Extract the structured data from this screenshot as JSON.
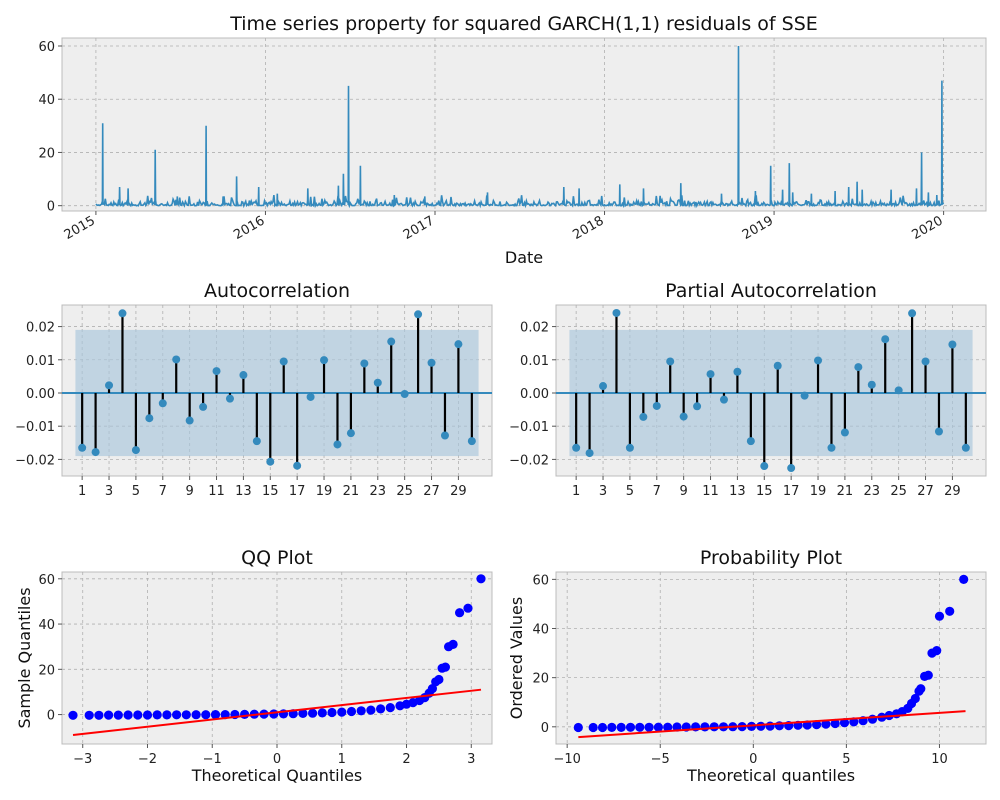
{
  "figure": {
    "main_title": "Time series property for squared GARCH(1,1) residuals of SSE",
    "acf_title": "Autocorrelation",
    "pacf_title": "Partial Autocorrelation",
    "qq_title": "QQ Plot",
    "prob_title": "Probability Plot",
    "line_color": "#348abd",
    "marker_color": "#0000ff",
    "fit_color": "#ff0000",
    "band_color": "#a9c6db",
    "axes_bg": "#eeeeee"
  },
  "chart_data": [
    {
      "type": "line",
      "title": "Time series property for squared GARCH(1,1) residuals of SSE",
      "xlabel": "Date",
      "ylabel": "",
      "xlim": [
        2014.8,
        2020.25
      ],
      "ylim": [
        -2,
        63
      ],
      "x_ticks": [
        2015,
        2016,
        2017,
        2018,
        2019,
        2020
      ],
      "x_tick_labels": [
        "2015",
        "2016",
        "2017",
        "2018",
        "2019",
        "2020"
      ],
      "y_ticks": [
        0,
        20,
        40,
        60
      ],
      "y_tick_labels": [
        "0",
        "20",
        "40",
        "60"
      ],
      "grid": true,
      "spikes": [
        {
          "date": 2015.04,
          "value": 31
        },
        {
          "date": 2015.14,
          "value": 7
        },
        {
          "date": 2015.19,
          "value": 6.5
        },
        {
          "date": 2015.35,
          "value": 21
        },
        {
          "date": 2015.48,
          "value": 3.5
        },
        {
          "date": 2015.65,
          "value": 30
        },
        {
          "date": 2015.75,
          "value": 3.5
        },
        {
          "date": 2015.83,
          "value": 11
        },
        {
          "date": 2015.96,
          "value": 7
        },
        {
          "date": 2016.07,
          "value": 4.5
        },
        {
          "date": 2016.25,
          "value": 6.5
        },
        {
          "date": 2016.43,
          "value": 7.5
        },
        {
          "date": 2016.46,
          "value": 12
        },
        {
          "date": 2016.49,
          "value": 45
        },
        {
          "date": 2016.56,
          "value": 15
        },
        {
          "date": 2016.76,
          "value": 4
        },
        {
          "date": 2016.94,
          "value": 3.5
        },
        {
          "date": 2017.31,
          "value": 5
        },
        {
          "date": 2017.76,
          "value": 7
        },
        {
          "date": 2017.85,
          "value": 6.5
        },
        {
          "date": 2018.09,
          "value": 8
        },
        {
          "date": 2018.23,
          "value": 6.5
        },
        {
          "date": 2018.45,
          "value": 8.5
        },
        {
          "date": 2018.69,
          "value": 4.5
        },
        {
          "date": 2018.79,
          "value": 60
        },
        {
          "date": 2018.89,
          "value": 5.5
        },
        {
          "date": 2018.98,
          "value": 15
        },
        {
          "date": 2019.05,
          "value": 6
        },
        {
          "date": 2019.09,
          "value": 16
        },
        {
          "date": 2019.11,
          "value": 5
        },
        {
          "date": 2019.22,
          "value": 4.5
        },
        {
          "date": 2019.36,
          "value": 5.5
        },
        {
          "date": 2019.44,
          "value": 7
        },
        {
          "date": 2019.49,
          "value": 9
        },
        {
          "date": 2019.52,
          "value": 6
        },
        {
          "date": 2019.69,
          "value": 6
        },
        {
          "date": 2019.84,
          "value": 6.5
        },
        {
          "date": 2019.87,
          "value": 20
        },
        {
          "date": 2019.91,
          "value": 5
        },
        {
          "date": 2019.96,
          "value": 4
        },
        {
          "date": 2019.99,
          "value": 47
        }
      ]
    },
    {
      "type": "bar",
      "title": "Autocorrelation",
      "xlabel": "",
      "ylabel": "",
      "xlim": [
        -0.5,
        31.5
      ],
      "ylim": [
        -0.025,
        0.0265
      ],
      "x_ticks": [
        1,
        3,
        5,
        7,
        9,
        11,
        13,
        15,
        17,
        19,
        21,
        23,
        25,
        27,
        29
      ],
      "x_tick_labels": [
        "1",
        "3",
        "5",
        "7",
        "9",
        "11",
        "13",
        "15",
        "17",
        "19",
        "21",
        "23",
        "25",
        "27",
        "29"
      ],
      "y_ticks": [
        -0.02,
        -0.01,
        0.0,
        0.01,
        0.02
      ],
      "y_tick_labels": [
        "−0.02",
        "−0.01",
        "0.00",
        "0.01",
        "0.02"
      ],
      "confidence_band": [
        -0.019,
        0.019
      ],
      "lags": [
        1,
        2,
        3,
        4,
        5,
        6,
        7,
        8,
        9,
        10,
        11,
        12,
        13,
        14,
        15,
        16,
        17,
        18,
        19,
        20,
        21,
        22,
        23,
        24,
        25,
        26,
        27,
        28,
        29,
        30
      ],
      "values": [
        -0.0165,
        -0.0178,
        0.0023,
        0.024,
        -0.0172,
        -0.0076,
        -0.0031,
        0.0101,
        -0.0083,
        -0.0042,
        0.0066,
        -0.0017,
        0.0054,
        -0.0145,
        -0.0207,
        0.0095,
        -0.0219,
        -0.0012,
        0.0099,
        -0.0155,
        -0.0121,
        0.0089,
        0.0031,
        0.0155,
        -0.0003,
        0.0237,
        0.0091,
        -0.0128,
        0.0147,
        -0.0145
      ],
      "grid": true
    },
    {
      "type": "bar",
      "title": "Partial Autocorrelation",
      "xlabel": "",
      "ylabel": "",
      "xlim": [
        -0.5,
        31.5
      ],
      "ylim": [
        -0.025,
        0.0265
      ],
      "x_ticks": [
        1,
        3,
        5,
        7,
        9,
        11,
        13,
        15,
        17,
        19,
        21,
        23,
        25,
        27,
        29
      ],
      "x_tick_labels": [
        "1",
        "3",
        "5",
        "7",
        "9",
        "11",
        "13",
        "15",
        "17",
        "19",
        "21",
        "23",
        "25",
        "27",
        "29"
      ],
      "y_ticks": [
        -0.02,
        -0.01,
        0.0,
        0.01,
        0.02
      ],
      "y_tick_labels": [
        "−0.02",
        "−0.01",
        "0.00",
        "0.01",
        "0.02"
      ],
      "confidence_band": [
        -0.019,
        0.019
      ],
      "lags": [
        1,
        2,
        3,
        4,
        5,
        6,
        7,
        8,
        9,
        10,
        11,
        12,
        13,
        14,
        15,
        16,
        17,
        18,
        19,
        20,
        21,
        22,
        23,
        24,
        25,
        26,
        27,
        28,
        29,
        30
      ],
      "values": [
        -0.0165,
        -0.0181,
        0.0021,
        0.0241,
        -0.0165,
        -0.0072,
        -0.0039,
        0.0095,
        -0.0071,
        -0.004,
        0.0057,
        -0.002,
        0.0064,
        -0.0145,
        -0.022,
        0.0082,
        -0.0226,
        -0.0008,
        0.0098,
        -0.0165,
        -0.0119,
        0.0078,
        0.0025,
        0.0162,
        0.0008,
        0.024,
        0.0095,
        -0.0116,
        0.0146,
        -0.0165
      ],
      "grid": true
    },
    {
      "type": "scatter",
      "title": "QQ Plot",
      "xlabel": "Theoretical Quantiles",
      "ylabel": "Sample Quantiles",
      "xlim": [
        -3.32,
        3.32
      ],
      "ylim": [
        -13,
        63
      ],
      "x_ticks": [
        -3,
        -2,
        -1,
        0,
        1,
        2,
        3
      ],
      "x_tick_labels": [
        "−3",
        "−2",
        "−1",
        "0",
        "1",
        "2",
        "3"
      ],
      "y_ticks": [
        0,
        20,
        40,
        60
      ],
      "y_tick_labels": [
        "0",
        "20",
        "40",
        "60"
      ],
      "fit_line": {
        "x": [
          -3.15,
          3.15
        ],
        "y": [
          -9,
          11
        ]
      },
      "points": [
        [
          -3.15,
          -0.3
        ],
        [
          -2.9,
          -0.3
        ],
        [
          -2.75,
          -0.3
        ],
        [
          -2.6,
          -0.25
        ],
        [
          -2.45,
          -0.25
        ],
        [
          -2.3,
          -0.2
        ],
        [
          -2.15,
          -0.2
        ],
        [
          -2.0,
          -0.2
        ],
        [
          -1.85,
          -0.15
        ],
        [
          -1.7,
          -0.15
        ],
        [
          -1.55,
          -0.1
        ],
        [
          -1.4,
          -0.1
        ],
        [
          -1.25,
          -0.05
        ],
        [
          -1.1,
          -0.05
        ],
        [
          -0.95,
          0.0
        ],
        [
          -0.8,
          0.0
        ],
        [
          -0.65,
          0.05
        ],
        [
          -0.5,
          0.1
        ],
        [
          -0.35,
          0.15
        ],
        [
          -0.2,
          0.2
        ],
        [
          -0.05,
          0.25
        ],
        [
          0.1,
          0.3
        ],
        [
          0.25,
          0.4
        ],
        [
          0.4,
          0.5
        ],
        [
          0.55,
          0.6
        ],
        [
          0.7,
          0.75
        ],
        [
          0.85,
          0.9
        ],
        [
          1.0,
          1.1
        ],
        [
          1.15,
          1.35
        ],
        [
          1.3,
          1.65
        ],
        [
          1.45,
          2.0
        ],
        [
          1.6,
          2.5
        ],
        [
          1.75,
          3.1
        ],
        [
          1.9,
          3.9
        ],
        [
          2.0,
          4.6
        ],
        [
          2.1,
          5.3
        ],
        [
          2.2,
          6.2
        ],
        [
          2.28,
          7.5
        ],
        [
          2.35,
          9.5
        ],
        [
          2.4,
          11.5
        ],
        [
          2.45,
          14.5
        ],
        [
          2.5,
          15.5
        ],
        [
          2.55,
          20.5
        ],
        [
          2.6,
          21.0
        ],
        [
          2.65,
          30.0
        ],
        [
          2.72,
          31.0
        ],
        [
          2.82,
          45.0
        ],
        [
          2.95,
          47.0
        ],
        [
          3.15,
          60.0
        ]
      ]
    },
    {
      "type": "scatter",
      "title": "Probability Plot",
      "xlabel": "Theoretical quantiles",
      "ylabel": "Ordered Values",
      "xlim": [
        -10.6,
        12.5
      ],
      "ylim": [
        -7,
        63
      ],
      "x_ticks": [
        -10,
        -5,
        0,
        5,
        10
      ],
      "x_tick_labels": [
        "−10",
        "−5",
        "0",
        "5",
        "10"
      ],
      "y_ticks": [
        0,
        20,
        40,
        60
      ],
      "y_tick_labels": [
        "0",
        "20",
        "40",
        "60"
      ],
      "fit_line": {
        "x": [
          -9.4,
          11.4
        ],
        "y": [
          -4.2,
          6.4
        ]
      },
      "points": [
        [
          -9.4,
          -0.3
        ],
        [
          -8.6,
          -0.3
        ],
        [
          -8.1,
          -0.3
        ],
        [
          -7.6,
          -0.25
        ],
        [
          -7.1,
          -0.25
        ],
        [
          -6.6,
          -0.2
        ],
        [
          -6.1,
          -0.2
        ],
        [
          -5.6,
          -0.2
        ],
        [
          -5.1,
          -0.15
        ],
        [
          -4.6,
          -0.15
        ],
        [
          -4.1,
          -0.1
        ],
        [
          -3.6,
          -0.1
        ],
        [
          -3.1,
          -0.05
        ],
        [
          -2.6,
          -0.05
        ],
        [
          -2.1,
          0.0
        ],
        [
          -1.6,
          0.0
        ],
        [
          -1.1,
          0.05
        ],
        [
          -0.6,
          0.1
        ],
        [
          -0.1,
          0.15
        ],
        [
          0.4,
          0.2
        ],
        [
          0.9,
          0.3
        ],
        [
          1.4,
          0.4
        ],
        [
          1.9,
          0.5
        ],
        [
          2.4,
          0.6
        ],
        [
          2.9,
          0.75
        ],
        [
          3.4,
          0.9
        ],
        [
          3.9,
          1.1
        ],
        [
          4.4,
          1.35
        ],
        [
          4.9,
          1.65
        ],
        [
          5.4,
          2.0
        ],
        [
          5.9,
          2.5
        ],
        [
          6.4,
          3.1
        ],
        [
          6.9,
          3.9
        ],
        [
          7.3,
          4.6
        ],
        [
          7.7,
          5.3
        ],
        [
          8.0,
          6.2
        ],
        [
          8.3,
          7.5
        ],
        [
          8.5,
          9.5
        ],
        [
          8.7,
          11.5
        ],
        [
          8.9,
          14.5
        ],
        [
          9.0,
          15.5
        ],
        [
          9.2,
          20.5
        ],
        [
          9.4,
          21.0
        ],
        [
          9.6,
          30.0
        ],
        [
          9.85,
          31.0
        ],
        [
          10.0,
          45.0
        ],
        [
          10.55,
          47.0
        ],
        [
          11.3,
          60.0
        ]
      ]
    }
  ]
}
